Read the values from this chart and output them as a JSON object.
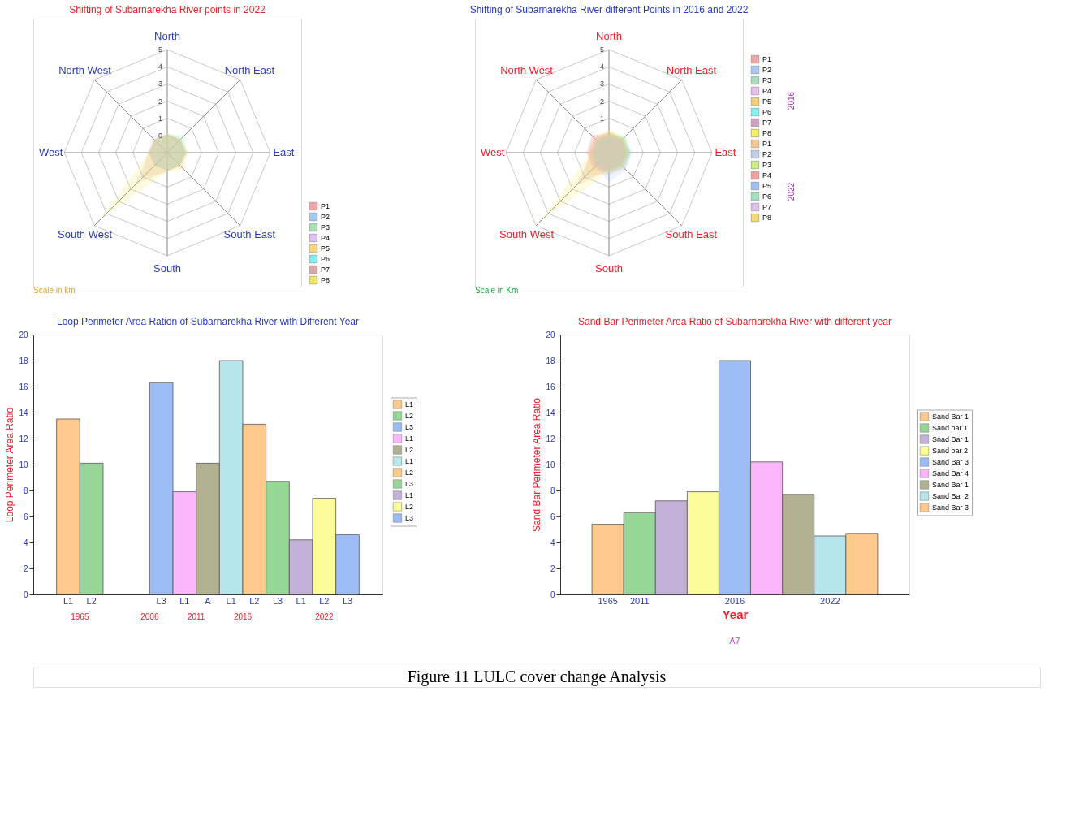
{
  "chart_data": [
    {
      "type": "radar",
      "title": "Shifting of Subarnarekha River points in 2022",
      "categories": [
        "North",
        "North East",
        "East",
        "South East",
        "South",
        "South West",
        "West",
        "North West"
      ],
      "ylim": [
        -1,
        5
      ],
      "yticks": [
        0,
        1,
        2,
        3,
        4,
        5
      ],
      "grid": true,
      "legend": "bottom right",
      "annotations": [
        "Scale in km"
      ],
      "series": [
        {
          "name": "P1",
          "color": "#f4a6a6",
          "values": [
            0.0,
            0.0,
            0.1,
            0.0,
            -0.1,
            0.0,
            0.0,
            0.1
          ]
        },
        {
          "name": "P2",
          "color": "#a6c8f4",
          "values": [
            -0.1,
            0.1,
            0.0,
            0.0,
            0.0,
            -0.1,
            -0.1,
            0.0
          ]
        },
        {
          "name": "P3",
          "color": "#a6e0b0",
          "values": [
            0.1,
            0.2,
            0.2,
            0.1,
            0.0,
            0.1,
            0.0,
            0.0
          ]
        },
        {
          "name": "P4",
          "color": "#e0c0f0",
          "values": [
            0.0,
            0.0,
            0.0,
            -0.1,
            -0.1,
            0.1,
            0.1,
            0.3
          ]
        },
        {
          "name": "P5",
          "color": "#f8d878",
          "values": [
            0.1,
            0.1,
            0.2,
            0.4,
            0.1,
            1.1,
            0.1,
            0.0
          ]
        },
        {
          "name": "P6",
          "color": "#80f0f0",
          "values": [
            0.1,
            0.4,
            0.1,
            0.0,
            0.0,
            0.0,
            0.0,
            0.0
          ]
        },
        {
          "name": "P7",
          "color": "#d8a8a8",
          "values": [
            0.1,
            0.1,
            0.1,
            0.1,
            0.1,
            1.6,
            0.1,
            0.1
          ]
        },
        {
          "name": "P8",
          "color": "#f0e860",
          "values": [
            0.1,
            0.2,
            0.2,
            0.1,
            0.1,
            4.5,
            0.1,
            0.1
          ]
        }
      ]
    },
    {
      "type": "radar",
      "title": "Shifting of Subarnarekha River different Points in 2016 and 2022",
      "categories": [
        "North",
        "North East",
        "East",
        "South East",
        "South",
        "South West",
        "West",
        "North West"
      ],
      "ylim": [
        -1,
        5
      ],
      "yticks": [
        1,
        2,
        3,
        4,
        5
      ],
      "grid": true,
      "legend": "right",
      "annotations": [
        "Scale in Km",
        "2016",
        "2022"
      ],
      "series": [
        {
          "name": "P1",
          "color": "#f4a6a6",
          "values": [
            0.1,
            0.0,
            0.0,
            0.0,
            0.0,
            0.2,
            0.3,
            0.4
          ]
        },
        {
          "name": "P2",
          "color": "#a6c8f4",
          "values": [
            -0.1,
            0.0,
            0.2,
            0.2,
            0.3,
            0.0,
            -0.1,
            -0.1
          ]
        },
        {
          "name": "P3",
          "color": "#a6e0c0",
          "values": [
            0.2,
            0.3,
            0.2,
            0.1,
            0.0,
            0.0,
            0.0,
            0.0
          ]
        },
        {
          "name": "P4",
          "color": "#e8c0f0",
          "values": [
            0.0,
            0.1,
            0.0,
            -0.1,
            0.0,
            0.1,
            0.1,
            0.2
          ]
        },
        {
          "name": "P5",
          "color": "#f8d070",
          "values": [
            0.1,
            0.1,
            0.1,
            0.1,
            0.0,
            1.4,
            0.1,
            0.0
          ]
        },
        {
          "name": "P6",
          "color": "#80f4f4",
          "values": [
            0.0,
            0.2,
            0.3,
            0.0,
            -0.1,
            -0.1,
            0.0,
            0.0
          ]
        },
        {
          "name": "P7",
          "color": "#d0a0c0",
          "values": [
            0.1,
            0.1,
            0.0,
            0.0,
            0.0,
            1.8,
            0.0,
            0.1
          ]
        },
        {
          "name": "P8",
          "color": "#f4f060",
          "values": [
            0.4,
            0.1,
            0.1,
            0.1,
            0.1,
            4.6,
            0.1,
            0.1
          ]
        },
        {
          "name": "P1",
          "color": "#f8c890",
          "values": [
            0.2,
            0.2,
            0.2,
            0.3,
            0.3,
            0.9,
            0.2,
            0.2
          ]
        },
        {
          "name": "P2",
          "color": "#c0d0e8",
          "values": [
            0.0,
            0.2,
            0.3,
            0.2,
            0.2,
            0.2,
            0.0,
            -0.1
          ]
        },
        {
          "name": "P3",
          "color": "#c8f080",
          "values": [
            0.3,
            0.4,
            0.2,
            0.0,
            0.0,
            0.0,
            -0.1,
            0.0
          ]
        },
        {
          "name": "P4",
          "color": "#f4a0a0",
          "values": [
            0.2,
            0.1,
            0.0,
            0.0,
            0.1,
            0.3,
            0.3,
            0.4
          ]
        },
        {
          "name": "P5",
          "color": "#a0c0f4",
          "values": [
            -0.1,
            0.0,
            0.3,
            0.4,
            0.7,
            0.1,
            -0.1,
            -0.1
          ]
        },
        {
          "name": "P6",
          "color": "#a0e0c0",
          "values": [
            0.1,
            0.3,
            0.4,
            0.3,
            0.1,
            0.0,
            0.0,
            0.0
          ]
        },
        {
          "name": "P7",
          "color": "#e0c0f0",
          "values": [
            0.1,
            0.0,
            -0.1,
            -0.1,
            0.0,
            0.2,
            0.2,
            0.2
          ]
        },
        {
          "name": "P8",
          "color": "#f4d870",
          "values": [
            0.2,
            0.2,
            0.2,
            0.2,
            0.2,
            0.4,
            0.2,
            0.2
          ]
        }
      ]
    },
    {
      "type": "bar",
      "title": "Loop Perimeter Area Ration of Subarnarekha River with Different Year",
      "ylabel": "Loop Perimeter Area Ratio",
      "categories": [
        "L1",
        "L2",
        null,
        null,
        "L3",
        "L1",
        "A",
        "L1",
        "L2",
        "L3",
        "L1",
        "L2",
        "L3"
      ],
      "ylim": [
        0,
        20
      ],
      "yticks": [
        0,
        2,
        4,
        6,
        8,
        10,
        12,
        14,
        16,
        18,
        20
      ],
      "legend": "right",
      "annotations": [
        "1965",
        "2006",
        "2011",
        "2016",
        "2022"
      ],
      "series": [
        {
          "name": "L1",
          "color": "#fdc98c",
          "values": [
            13.5,
            null,
            null,
            null,
            null,
            null,
            null,
            null,
            null,
            null,
            null,
            null,
            null
          ]
        },
        {
          "name": "L2",
          "color": "#96d696",
          "values": [
            null,
            10.1,
            null,
            null,
            null,
            null,
            null,
            null,
            null,
            null,
            null,
            null,
            null
          ]
        },
        {
          "name": "L3",
          "color": "#9dbbf5",
          "values": [
            null,
            null,
            null,
            null,
            16.3,
            null,
            null,
            null,
            null,
            null,
            null,
            null,
            null
          ]
        },
        {
          "name": "L1",
          "color": "#fbb5fb",
          "values": [
            null,
            null,
            null,
            null,
            null,
            7.9,
            null,
            null,
            null,
            null,
            null,
            null,
            null
          ]
        },
        {
          "name": "L2",
          "color": "#b2b293",
          "values": [
            null,
            null,
            null,
            null,
            null,
            null,
            10.1,
            null,
            null,
            null,
            null,
            null,
            null
          ]
        },
        {
          "name": "L1",
          "color": "#b4e6ec",
          "values": [
            null,
            null,
            null,
            null,
            null,
            null,
            null,
            18.0,
            null,
            null,
            null,
            null,
            null
          ]
        },
        {
          "name": "L2",
          "color": "#fdc98c",
          "values": [
            null,
            null,
            null,
            null,
            null,
            null,
            null,
            null,
            13.1,
            null,
            null,
            null,
            null
          ]
        },
        {
          "name": "L3",
          "color": "#96d696",
          "values": [
            null,
            null,
            null,
            null,
            null,
            null,
            null,
            null,
            null,
            8.7,
            null,
            null,
            null
          ]
        },
        {
          "name": "L1",
          "color": "#c3b1d8",
          "values": [
            null,
            null,
            null,
            null,
            null,
            null,
            null,
            null,
            null,
            null,
            4.2,
            null,
            null
          ]
        },
        {
          "name": "L2",
          "color": "#fbfb99",
          "values": [
            null,
            null,
            null,
            null,
            null,
            null,
            null,
            null,
            null,
            null,
            null,
            7.4,
            null
          ]
        },
        {
          "name": "L3",
          "color": "#9dbbf5",
          "values": [
            null,
            null,
            null,
            null,
            null,
            null,
            null,
            null,
            null,
            null,
            null,
            null,
            4.6
          ]
        }
      ]
    },
    {
      "type": "bar",
      "title": "Sand Bar Perimeter Area Ratio of Subarnarekha River with different year",
      "xlabel": "Year",
      "ylabel": "Sand Bar Perimeter Area Ratio",
      "categories": [
        "1965",
        "2011",
        null,
        null,
        "2016",
        null,
        null,
        "2022",
        null
      ],
      "ylim": [
        0,
        20
      ],
      "yticks": [
        0,
        2,
        4,
        6,
        8,
        10,
        12,
        14,
        16,
        18,
        20
      ],
      "legend": "right",
      "annotations": [
        "A7",
        "Figure 11 LULC cover change Analysis"
      ],
      "series": [
        {
          "name": "Sand Bar 1",
          "color": "#fdc98c",
          "values": [
            5.4,
            null,
            null,
            null,
            null,
            null,
            null,
            null,
            null
          ]
        },
        {
          "name": "Sand bar 1",
          "color": "#96d696",
          "values": [
            null,
            6.3,
            null,
            null,
            null,
            null,
            null,
            null,
            null
          ]
        },
        {
          "name": "Snad Bar 1",
          "color": "#c3b1d8",
          "values": [
            null,
            null,
            7.2,
            null,
            null,
            null,
            null,
            null,
            null
          ]
        },
        {
          "name": "Sand bar 2",
          "color": "#fbfb99",
          "values": [
            null,
            null,
            null,
            7.9,
            null,
            null,
            null,
            null,
            null
          ]
        },
        {
          "name": "Sand Bar 3",
          "color": "#9dbbf5",
          "values": [
            null,
            null,
            null,
            null,
            18.0,
            null,
            null,
            null,
            null
          ]
        },
        {
          "name": "Sand Bar 4",
          "color": "#fbb5fb",
          "values": [
            null,
            null,
            null,
            null,
            null,
            10.2,
            null,
            null,
            null
          ]
        },
        {
          "name": "Sand Bar 1",
          "color": "#b2b293",
          "values": [
            null,
            null,
            null,
            null,
            null,
            null,
            7.7,
            null,
            null
          ]
        },
        {
          "name": "Sand Bar 2",
          "color": "#b4e6ec",
          "values": [
            null,
            null,
            null,
            null,
            null,
            null,
            null,
            4.5,
            null
          ]
        },
        {
          "name": "Sand Bar 3",
          "color": "#fdc98c",
          "values": [
            null,
            null,
            null,
            null,
            null,
            null,
            null,
            null,
            4.7
          ]
        }
      ]
    }
  ]
}
